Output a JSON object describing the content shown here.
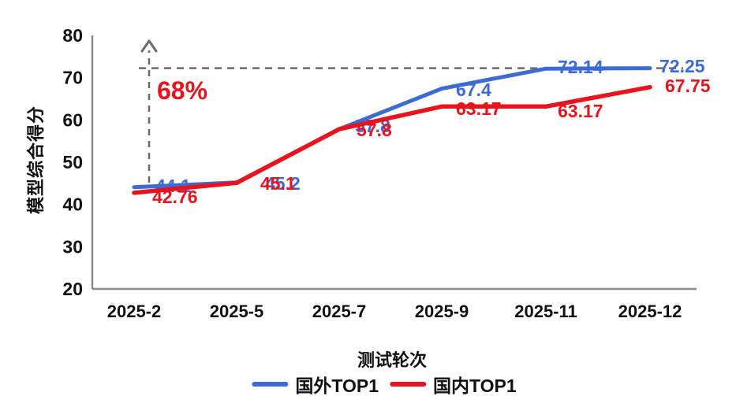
{
  "chart_data": {
    "type": "line",
    "title": "",
    "xlabel": "测试轮次",
    "ylabel": "模型综合得分",
    "categories": [
      "2025-2",
      "2025-5",
      "2025-7",
      "2025-9",
      "2025-11",
      "2025-12"
    ],
    "ylim": [
      20,
      80
    ],
    "yticks": [
      80,
      70,
      60,
      50,
      40,
      30,
      20
    ],
    "grid": false,
    "legend_position": "bottom",
    "series": [
      {
        "name": "国外TOP1",
        "color": "#3D6BD6",
        "values": [
          44.1,
          45.2,
          57.8,
          67.4,
          72.14,
          72.25
        ],
        "labels": [
          "44.1",
          "45.2",
          "57.8",
          "67.4",
          "72.14",
          "72.25"
        ]
      },
      {
        "name": "国内TOP1",
        "color": "#E8131C",
        "values": [
          42.76,
          45.1,
          57.8,
          63.17,
          63.17,
          67.75
        ],
        "labels": [
          "42.76",
          "45.1",
          "57.8",
          "63.17",
          "63.17",
          "67.75"
        ]
      }
    ],
    "annotation": {
      "text": "68%",
      "color": "#E8131C"
    },
    "reference_line": {
      "value": 72.25,
      "style": "dashed"
    }
  }
}
